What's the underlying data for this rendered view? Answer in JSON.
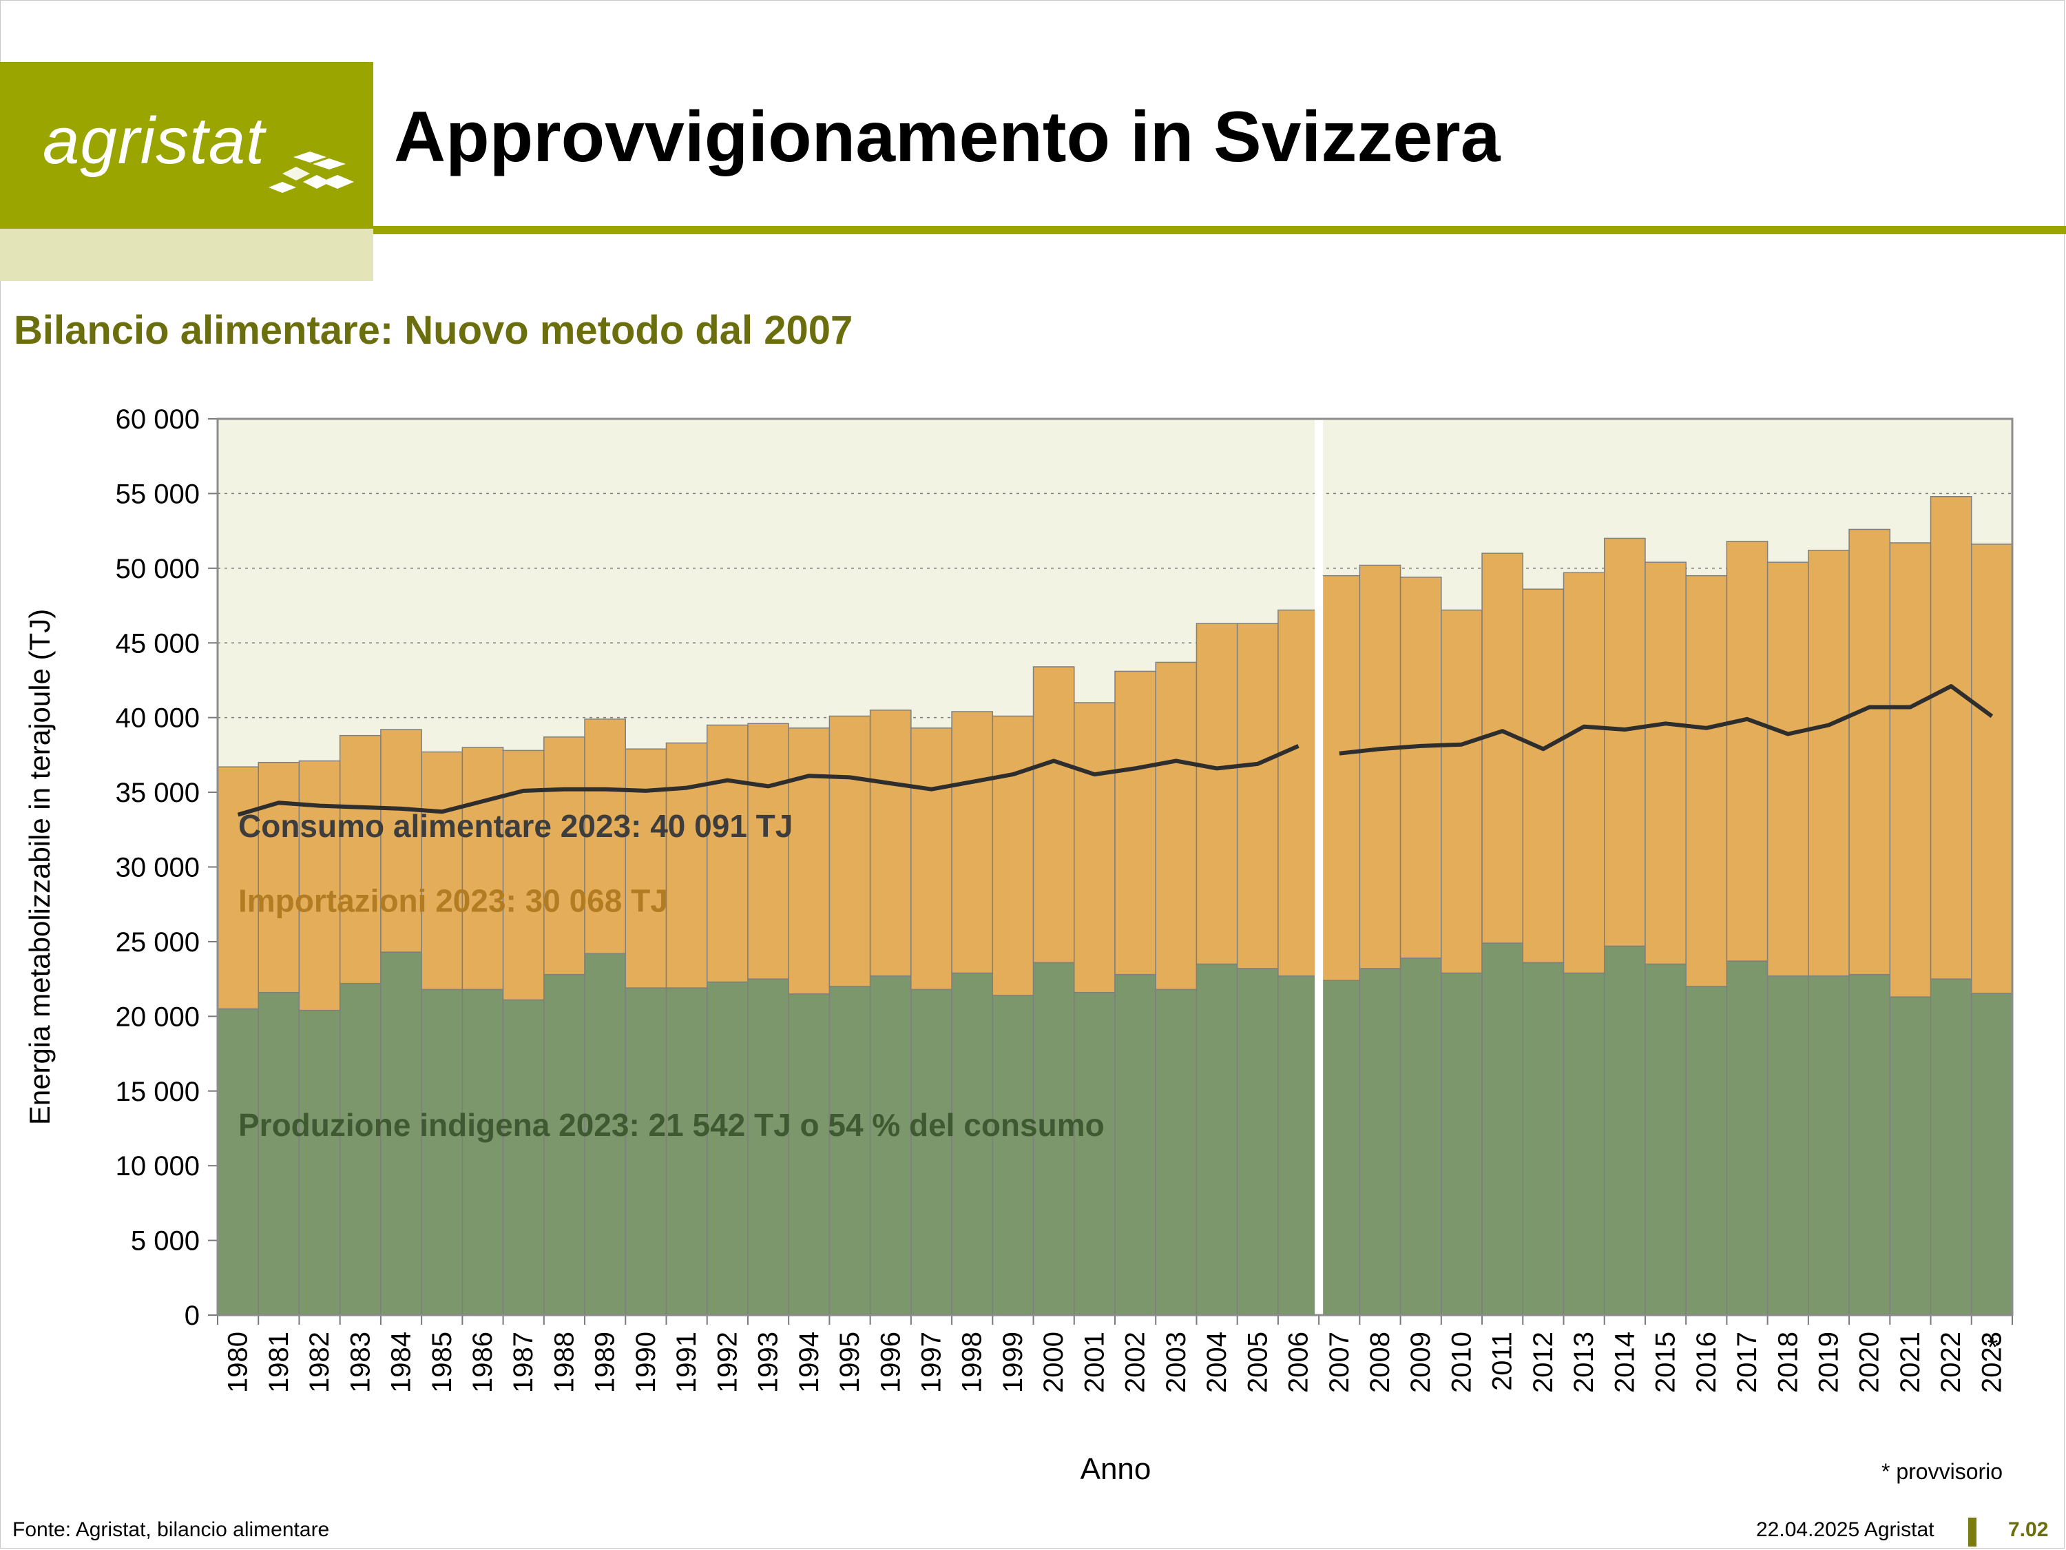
{
  "header": {
    "logo_text": "agristat",
    "title": "Approvvigionamento in Svizzera"
  },
  "subtitle": "Bilancio alimentare: Nuovo metodo dal 2007",
  "footer": {
    "source": "Fonte: Agristat, bilancio alimentare",
    "date": "22.04.2025 Agristat",
    "page": "7.02"
  },
  "note": "* provvisorio",
  "colors": {
    "brand": "#9aa500",
    "production": "#7b976b",
    "imports": "#e4ad5a",
    "consumption_line": "#2e2e2e",
    "plot_background": "#f3f3e3"
  },
  "chart_data": {
    "type": "bar",
    "stacked": true,
    "xlabel": "Anno",
    "ylabel": "Energia metabolizzabile in terajoule (TJ)",
    "ylim": [
      0,
      60000
    ],
    "yticks": [
      0,
      5000,
      10000,
      15000,
      20000,
      25000,
      30000,
      35000,
      40000,
      45000,
      50000,
      55000,
      60000
    ],
    "ytick_labels": [
      "0",
      "5 000",
      "10 000",
      "15 000",
      "20 000",
      "25 000",
      "30 000",
      "35 000",
      "40 000",
      "45 000",
      "50 000",
      "55 000",
      "60 000"
    ],
    "grid": "horizontal dashed",
    "method_break_after": "2006",
    "provisional_marker": {
      "category": "2023",
      "symbol": "*"
    },
    "categories": [
      "1980",
      "1981",
      "1982",
      "1983",
      "1984",
      "1985",
      "1986",
      "1987",
      "1988",
      "1989",
      "1990",
      "1991",
      "1992",
      "1993",
      "1994",
      "1995",
      "1996",
      "1997",
      "1998",
      "1999",
      "2000",
      "2001",
      "2002",
      "2003",
      "2004",
      "2005",
      "2006",
      "2007",
      "2008",
      "2009",
      "2010",
      "2011",
      "2012",
      "2013",
      "2014",
      "2015",
      "2016",
      "2017",
      "2018",
      "2019",
      "2020",
      "2021",
      "2022",
      "2023"
    ],
    "series": [
      {
        "key": "production",
        "kind": "bar",
        "values": [
          20500,
          21600,
          20400,
          22200,
          24300,
          21800,
          21800,
          21100,
          22800,
          24200,
          21900,
          21900,
          22300,
          22500,
          21500,
          22000,
          22700,
          21800,
          22900,
          21400,
          23600,
          21600,
          22800,
          21800,
          23500,
          23200,
          22700,
          22400,
          23200,
          23900,
          22900,
          24900,
          23600,
          22900,
          24700,
          23500,
          22000,
          23700,
          22700,
          22700,
          22800,
          21300,
          22500,
          21542
        ]
      },
      {
        "key": "imports",
        "kind": "bar",
        "values": [
          16200,
          15400,
          16700,
          16600,
          14900,
          15900,
          16200,
          16700,
          15900,
          15700,
          16000,
          16400,
          17200,
          17100,
          17800,
          18100,
          17800,
          17500,
          17500,
          18700,
          19800,
          19400,
          20300,
          21900,
          22800,
          23100,
          24500,
          27100,
          27000,
          25500,
          24300,
          26100,
          25000,
          26800,
          27300,
          26900,
          27500,
          28100,
          27700,
          28500,
          29800,
          30400,
          32300,
          30068
        ]
      },
      {
        "key": "consumption",
        "kind": "line",
        "values": [
          33500,
          34300,
          34100,
          34000,
          33900,
          33700,
          34400,
          35100,
          35200,
          35200,
          35100,
          35300,
          35800,
          35400,
          36100,
          36000,
          35600,
          35200,
          35700,
          36200,
          37100,
          36200,
          36600,
          37100,
          36600,
          36900,
          38100,
          37600,
          37900,
          38100,
          38200,
          39100,
          37900,
          39400,
          39200,
          39600,
          39300,
          39900,
          38900,
          39500,
          40700,
          40700,
          42100,
          40091
        ]
      }
    ],
    "annotations": [
      {
        "text": "Consumo alimentare 2023: 40 091 TJ",
        "series": "consumption",
        "y": 32000
      },
      {
        "text": "Importazioni 2023: 30 068 TJ",
        "series": "imports",
        "y": 27000
      },
      {
        "text": "Produzione indigena 2023: 21 542 TJ o 54 % del consumo",
        "series": "production",
        "y": 12000
      }
    ]
  }
}
